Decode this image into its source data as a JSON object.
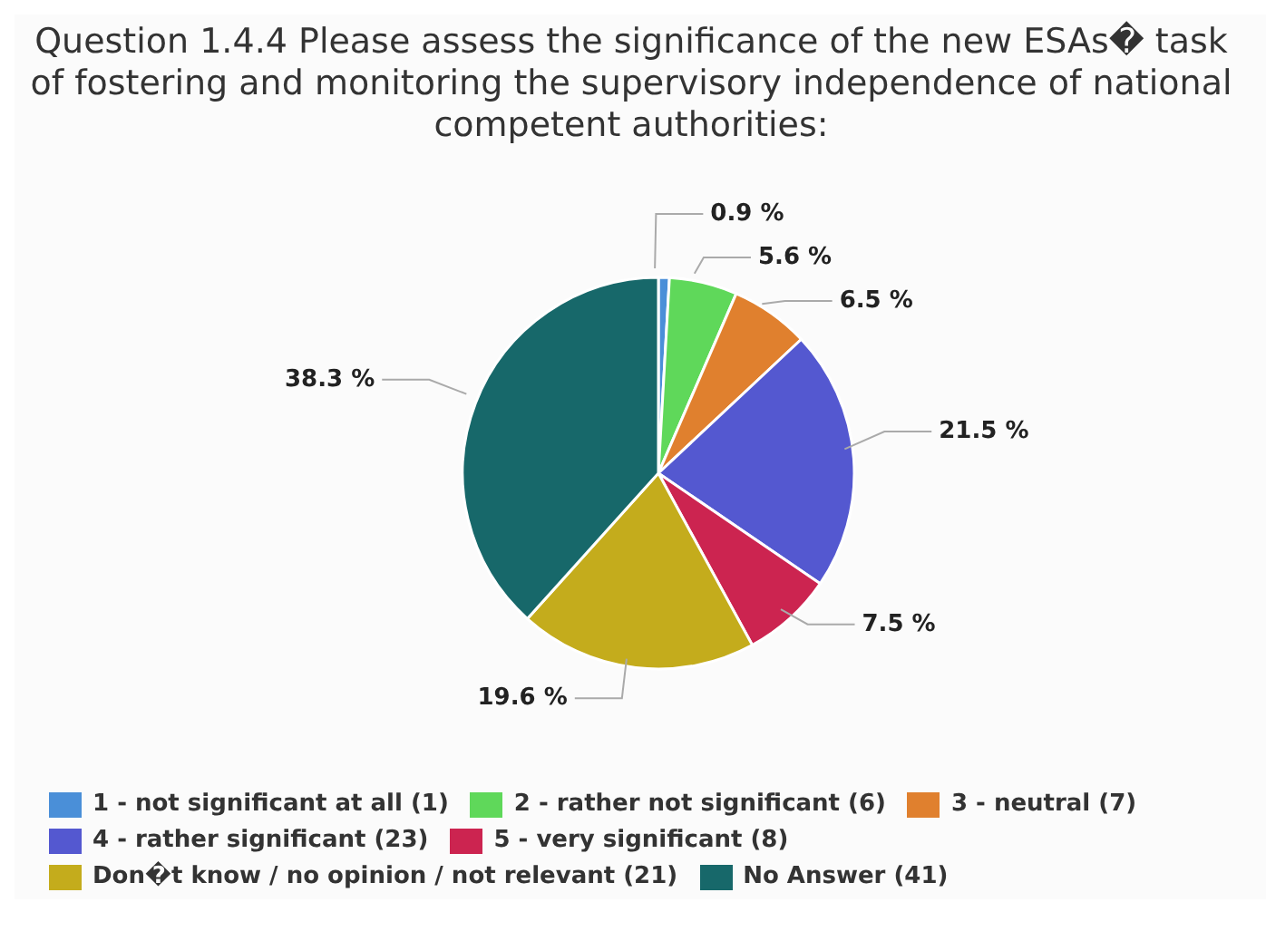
{
  "chart_data": {
    "type": "pie",
    "title": "Question 1.4.4 Please assess the significance of the new ESAs� task of fostering and monitoring the supervisory independence of national competent authorities:",
    "categories": [
      "1 - not significant at all (1)",
      "2 - rather not significant (6)",
      "3 - neutral (7)",
      "4 - rather significant (23)",
      "5 - very significant (8)",
      "Don�t know / no opinion / not relevant (21)",
      "No Answer (41)"
    ],
    "values": [
      0.9,
      5.6,
      6.5,
      21.5,
      7.5,
      19.6,
      38.3
    ],
    "value_labels": [
      "0.9 %",
      "5.6 %",
      "6.5 %",
      "21.5 %",
      "7.5 %",
      "19.6 %",
      "38.3 %"
    ],
    "colors": [
      "#4a8fd8",
      "#5fd85a",
      "#e0802e",
      "#5458d0",
      "#cc2450",
      "#c4ac1c",
      "#17686a"
    ],
    "legend": "bottom"
  }
}
